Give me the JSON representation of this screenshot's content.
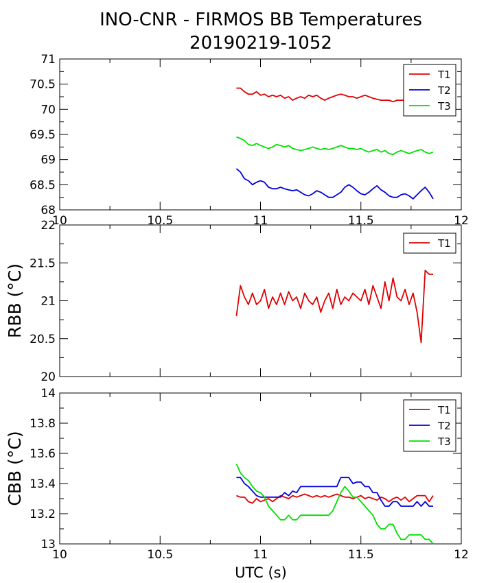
{
  "title": "INO-CNR - FIRMOS BB Temperatures",
  "subtitle": "20190219-1052",
  "xlabel": "UTC (s)",
  "colors": {
    "T1": "#e00000",
    "T2": "#0000e0",
    "T3": "#00e000"
  },
  "chart_data": [
    {
      "type": "line",
      "ylabel": "",
      "xlim": [
        10,
        12
      ],
      "ylim": [
        68,
        71
      ],
      "xticks": [
        "10",
        "10.5",
        "11",
        "11.5",
        "12"
      ],
      "yticks": [
        "68",
        "68.5",
        "69",
        "69.5",
        "70",
        "70.5",
        "71"
      ],
      "legend": "top-right",
      "x": [
        10.88,
        10.9,
        10.92,
        10.94,
        10.96,
        10.98,
        11.0,
        11.02,
        11.04,
        11.06,
        11.08,
        11.1,
        11.12,
        11.14,
        11.16,
        11.18,
        11.2,
        11.22,
        11.24,
        11.26,
        11.28,
        11.3,
        11.32,
        11.34,
        11.36,
        11.38,
        11.4,
        11.42,
        11.44,
        11.46,
        11.48,
        11.5,
        11.52,
        11.54,
        11.56,
        11.58,
        11.6,
        11.62,
        11.64,
        11.66,
        11.68,
        11.7,
        11.72,
        11.74,
        11.76,
        11.78,
        11.8,
        11.82,
        11.84,
        11.86
      ],
      "series": [
        {
          "name": "T1",
          "color": "#e00000",
          "values": [
            70.42,
            70.42,
            70.35,
            70.3,
            70.3,
            70.35,
            70.28,
            70.3,
            70.25,
            70.28,
            70.25,
            70.28,
            70.22,
            70.25,
            70.18,
            70.22,
            70.25,
            70.22,
            70.28,
            70.25,
            70.28,
            70.22,
            70.18,
            70.22,
            70.25,
            70.28,
            70.3,
            70.28,
            70.25,
            70.25,
            70.22,
            70.25,
            70.28,
            70.25,
            70.22,
            70.2,
            70.18,
            70.18,
            70.18,
            70.15,
            70.18,
            70.18,
            70.18,
            70.15,
            70.18,
            70.18,
            70.12,
            70.15,
            70.15,
            70.15
          ]
        },
        {
          "name": "T2",
          "color": "#0000e0",
          "values": [
            68.82,
            68.75,
            68.62,
            68.58,
            68.5,
            68.55,
            68.58,
            68.55,
            68.45,
            68.42,
            68.42,
            68.45,
            68.42,
            68.4,
            68.38,
            68.4,
            68.35,
            68.3,
            68.28,
            68.32,
            68.38,
            68.35,
            68.3,
            68.25,
            68.25,
            68.3,
            68.35,
            68.45,
            68.5,
            68.45,
            68.38,
            68.32,
            68.3,
            68.35,
            68.42,
            68.48,
            68.4,
            68.35,
            68.28,
            68.25,
            68.25,
            68.3,
            68.32,
            68.28,
            68.22,
            68.3,
            68.38,
            68.45,
            68.35,
            68.22
          ]
        },
        {
          "name": "T3",
          "color": "#00e000",
          "values": [
            69.45,
            69.42,
            69.38,
            69.3,
            69.28,
            69.32,
            69.28,
            69.25,
            69.22,
            69.25,
            69.3,
            69.28,
            69.25,
            69.28,
            69.22,
            69.2,
            69.18,
            69.2,
            69.22,
            69.25,
            69.22,
            69.2,
            69.22,
            69.2,
            69.22,
            69.25,
            69.28,
            69.25,
            69.22,
            69.22,
            69.2,
            69.22,
            69.18,
            69.15,
            69.18,
            69.2,
            69.15,
            69.18,
            69.12,
            69.1,
            69.15,
            69.18,
            69.15,
            69.12,
            69.15,
            69.18,
            69.2,
            69.15,
            69.12,
            69.15
          ]
        }
      ]
    },
    {
      "type": "line",
      "ylabel": "RBB (°C)",
      "xlim": [
        10,
        12
      ],
      "ylim": [
        20,
        22
      ],
      "xticks": [
        "",
        "",
        "",
        "",
        ""
      ],
      "yticks": [
        "20",
        "20.5",
        "21",
        "21.5",
        "22"
      ],
      "legend": "top-right",
      "x": [
        10.88,
        10.9,
        10.92,
        10.94,
        10.96,
        10.98,
        11.0,
        11.02,
        11.04,
        11.06,
        11.08,
        11.1,
        11.12,
        11.14,
        11.16,
        11.18,
        11.2,
        11.22,
        11.24,
        11.26,
        11.28,
        11.3,
        11.32,
        11.34,
        11.36,
        11.38,
        11.4,
        11.42,
        11.44,
        11.46,
        11.48,
        11.5,
        11.52,
        11.54,
        11.56,
        11.58,
        11.6,
        11.62,
        11.64,
        11.66,
        11.68,
        11.7,
        11.72,
        11.74,
        11.76,
        11.78,
        11.8,
        11.82,
        11.84,
        11.86
      ],
      "series": [
        {
          "name": "T1",
          "color": "#e00000",
          "values": [
            20.8,
            21.2,
            21.05,
            20.95,
            21.1,
            20.95,
            21.0,
            21.15,
            20.9,
            21.05,
            20.95,
            21.1,
            20.95,
            21.12,
            21.0,
            21.05,
            20.9,
            21.1,
            21.0,
            20.95,
            21.05,
            20.85,
            21.0,
            21.1,
            20.9,
            21.15,
            20.95,
            21.05,
            21.0,
            21.1,
            21.05,
            21.0,
            21.15,
            20.95,
            21.2,
            21.05,
            20.9,
            21.25,
            21.0,
            21.3,
            21.05,
            21.0,
            21.15,
            20.95,
            21.1,
            20.85,
            20.45,
            21.4,
            21.35,
            21.35
          ]
        }
      ]
    },
    {
      "type": "line",
      "ylabel": "CBB (°C)",
      "xlim": [
        10,
        12
      ],
      "ylim": [
        13,
        14
      ],
      "xticks": [
        "10",
        "10.5",
        "11",
        "11.5",
        "12"
      ],
      "yticks": [
        "13",
        "13.2",
        "13.4",
        "13.6",
        "13.8",
        "14"
      ],
      "legend": "top-right",
      "x": [
        10.88,
        10.9,
        10.92,
        10.94,
        10.96,
        10.98,
        11.0,
        11.02,
        11.04,
        11.06,
        11.08,
        11.1,
        11.12,
        11.14,
        11.16,
        11.18,
        11.2,
        11.22,
        11.24,
        11.26,
        11.28,
        11.3,
        11.32,
        11.34,
        11.36,
        11.38,
        11.4,
        11.42,
        11.44,
        11.46,
        11.48,
        11.5,
        11.52,
        11.54,
        11.56,
        11.58,
        11.6,
        11.62,
        11.64,
        11.66,
        11.68,
        11.7,
        11.72,
        11.74,
        11.76,
        11.78,
        11.8,
        11.82,
        11.84,
        11.86
      ],
      "series": [
        {
          "name": "T1",
          "color": "#e00000",
          "values": [
            13.32,
            13.31,
            13.31,
            13.28,
            13.27,
            13.3,
            13.28,
            13.29,
            13.3,
            13.28,
            13.3,
            13.32,
            13.31,
            13.3,
            13.32,
            13.31,
            13.32,
            13.33,
            13.32,
            13.31,
            13.32,
            13.31,
            13.32,
            13.31,
            13.32,
            13.33,
            13.32,
            13.31,
            13.31,
            13.3,
            13.31,
            13.32,
            13.3,
            13.31,
            13.3,
            13.29,
            13.31,
            13.3,
            13.28,
            13.3,
            13.31,
            13.29,
            13.31,
            13.28,
            13.3,
            13.32,
            13.32,
            13.32,
            13.28,
            13.32
          ]
        },
        {
          "name": "T2",
          "color": "#0000e0",
          "values": [
            13.44,
            13.44,
            13.4,
            13.38,
            13.35,
            13.32,
            13.31,
            13.31,
            13.31,
            13.31,
            13.31,
            13.31,
            13.34,
            13.32,
            13.35,
            13.34,
            13.38,
            13.38,
            13.38,
            13.38,
            13.38,
            13.38,
            13.38,
            13.38,
            13.38,
            13.38,
            13.44,
            13.44,
            13.44,
            13.4,
            13.41,
            13.41,
            13.38,
            13.38,
            13.34,
            13.34,
            13.29,
            13.25,
            13.25,
            13.28,
            13.28,
            13.25,
            13.25,
            13.25,
            13.25,
            13.28,
            13.25,
            13.28,
            13.25,
            13.25
          ]
        },
        {
          "name": "T3",
          "color": "#00e000",
          "values": [
            13.53,
            13.47,
            13.44,
            13.42,
            13.38,
            13.35,
            13.34,
            13.31,
            13.25,
            13.22,
            13.19,
            13.16,
            13.16,
            13.19,
            13.16,
            13.16,
            13.19,
            13.19,
            13.19,
            13.19,
            13.19,
            13.19,
            13.19,
            13.19,
            13.22,
            13.28,
            13.34,
            13.38,
            13.35,
            13.31,
            13.31,
            13.28,
            13.25,
            13.22,
            13.19,
            13.13,
            13.1,
            13.1,
            13.13,
            13.13,
            13.07,
            13.03,
            13.03,
            13.06,
            13.06,
            13.06,
            13.06,
            13.03,
            13.03,
            13.0
          ]
        }
      ]
    }
  ]
}
